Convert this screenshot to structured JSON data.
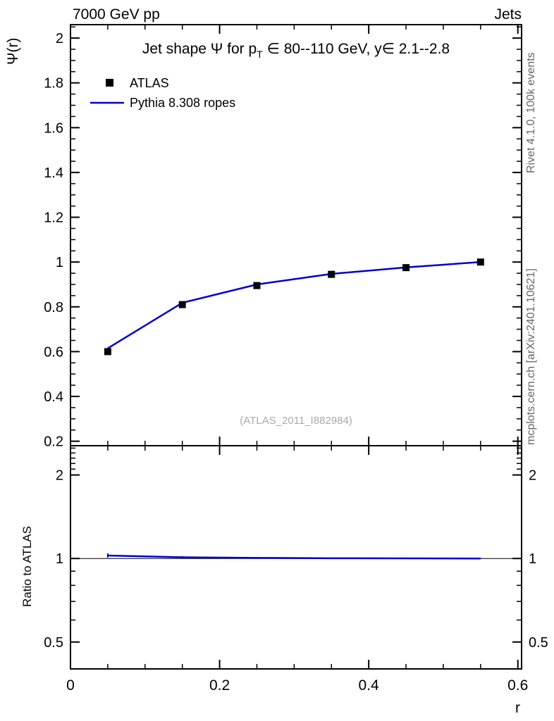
{
  "header": {
    "left": "7000 GeV pp",
    "right": "Jets"
  },
  "side_notes": {
    "top_right": "Rivet 4.1.0,  100k events",
    "bottom_right": "mcplots.cern.ch [arXiv:2401.10621]"
  },
  "watermark": "(ATLAS_2011_I882984)",
  "title": {
    "pre": "Jet shape Ψ for p",
    "sub": "T",
    "post": " ∈ 80--110 GeV, y∈ 2.1--2.8"
  },
  "axes": {
    "main_ylabel": "Ψ(r)",
    "ratio_ylabel": "Ratio to ATLAS",
    "xlabel": "r"
  },
  "legend": [
    {
      "label": "ATLAS",
      "type": "marker",
      "color": "#000000"
    },
    {
      "label": "Pythia 8.308 ropes",
      "type": "line",
      "color": "#0000cc"
    }
  ],
  "chart_data": {
    "type": "line",
    "title": "Jet shape Ψ for p_T ∈ 80--110 GeV, y∈ 2.1--2.8",
    "x": [
      0.05,
      0.15,
      0.25,
      0.35,
      0.45,
      0.55
    ],
    "xlim": [
      0,
      0.605
    ],
    "xticks": [
      0,
      0.2,
      0.4,
      0.6
    ],
    "xtick_minor_step": 0.05,
    "xlabel": "r",
    "main": {
      "ylabel": "Ψ(r)",
      "scale": "linear",
      "ylim": [
        0.18,
        2.06
      ],
      "yticks": [
        0.2,
        0.4,
        0.6,
        0.8,
        1,
        1.2,
        1.4,
        1.6,
        1.8,
        2
      ],
      "ytick_minor_step": 0.05,
      "series": [
        {
          "name": "ATLAS",
          "style": "marker",
          "marker": "filled-square",
          "color": "#000000",
          "values": [
            0.6,
            0.81,
            0.895,
            0.945,
            0.975,
            1.0
          ],
          "errors": [
            0.01,
            0.008,
            0.006,
            0.005,
            0.004,
            0.003
          ]
        },
        {
          "name": "Pythia 8.308 ropes",
          "style": "line",
          "color": "#0000cc",
          "values": [
            0.615,
            0.818,
            0.9,
            0.947,
            0.976,
            1.0
          ]
        }
      ]
    },
    "ratio": {
      "ylabel": "Ratio to ATLAS",
      "scale": "log",
      "ylim": [
        0.4,
        2.55
      ],
      "yticks": [
        0.5,
        1,
        2
      ],
      "yticks_minor": [
        0.4,
        0.6,
        0.7,
        0.8,
        0.9,
        2.1,
        2.2,
        2.3,
        2.4,
        2.5
      ],
      "reference": 1,
      "series": [
        {
          "name": "Pythia 8.308 ropes / ATLAS",
          "color": "#0000cc",
          "values": [
            1.025,
            1.01,
            1.005,
            1.002,
            1.001,
            1.0
          ],
          "errors": [
            0.018,
            0.01,
            0.007,
            0.005,
            0.004,
            0.003
          ]
        }
      ]
    }
  }
}
